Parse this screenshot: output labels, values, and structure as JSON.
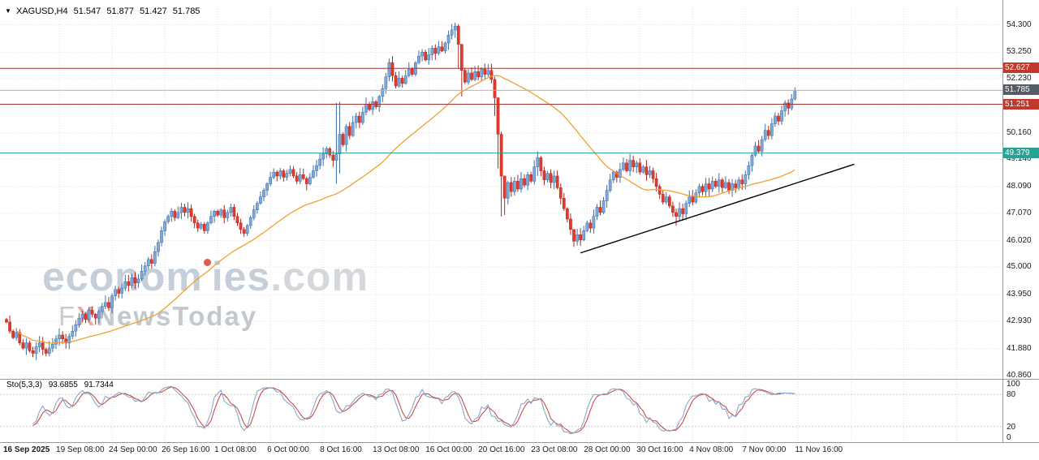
{
  "quote_bar": {
    "symbol_period": "XAGUSD,H4",
    "open": "51.547",
    "high": "51.877",
    "low": "51.427",
    "close": "51.785"
  },
  "watermark": {
    "brand_a": "econom",
    "brand_b": "ies",
    "tld": ".com",
    "fx_f": "F",
    "fx_x": "X",
    "fx_rest": "NewsToday"
  },
  "indicator_label": {
    "name": "Sto(5,3,3)",
    "main_value": "93.6855",
    "signal_value": "91.7344"
  },
  "chart_data": {
    "type": "candlestick",
    "symbol": "XAGUSD",
    "timeframe": "H4",
    "current_ohlc": {
      "open": 51.547,
      "high": 51.877,
      "low": 51.427,
      "close": 51.785
    },
    "visible_price_range": [
      40.72,
      55.0
    ],
    "first_open": 43.0,
    "closes": [
      42.9,
      42.55,
      42.3,
      42.5,
      42.1,
      41.9,
      42.1,
      41.8,
      41.7,
      41.95,
      42.1,
      41.85,
      41.7,
      41.9,
      42.05,
      42.25,
      42.4,
      42.25,
      42.1,
      42.35,
      42.55,
      42.8,
      43.05,
      43.2,
      43.0,
      43.35,
      43.2,
      43.05,
      43.3,
      43.5,
      43.65,
      43.45,
      43.9,
      44.15,
      44.0,
      44.2,
      44.45,
      44.3,
      44.6,
      44.4,
      44.55,
      44.85,
      45.05,
      45.3,
      45.15,
      45.6,
      45.95,
      46.4,
      46.75,
      46.95,
      47.15,
      46.9,
      47.1,
      47.3,
      47.1,
      47.25,
      46.95,
      46.7,
      46.5,
      46.65,
      46.4,
      46.7,
      46.95,
      47.15,
      47.0,
      47.2,
      46.9,
      47.1,
      47.3,
      46.95,
      46.7,
      46.45,
      46.3,
      46.6,
      46.9,
      47.2,
      47.45,
      47.7,
      47.95,
      48.2,
      48.45,
      48.65,
      48.5,
      48.7,
      48.45,
      48.6,
      48.75,
      48.5,
      48.3,
      48.55,
      48.4,
      48.2,
      48.45,
      48.7,
      48.9,
      49.15,
      49.35,
      49.55,
      49.3,
      49.1,
      49.35,
      50.1,
      49.7,
      50.4,
      50.05,
      50.55,
      50.8,
      50.55,
      50.95,
      51.25,
      51.05,
      51.35,
      51.15,
      51.55,
      51.85,
      52.3,
      52.85,
      52.35,
      51.95,
      52.25,
      52.05,
      52.35,
      52.6,
      52.4,
      52.85,
      53.1,
      53.25,
      52.95,
      53.15,
      53.4,
      53.2,
      53.45,
      53.3,
      53.6,
      53.9,
      54.1,
      54.25,
      53.55,
      52.55,
      52.1,
      52.45,
      52.2,
      52.5,
      52.3,
      52.6,
      52.4,
      52.55,
      52.2,
      51.5,
      50.1,
      48.5,
      47.65,
      48.25,
      47.9,
      48.3,
      48.0,
      48.4,
      48.15,
      48.55,
      48.3,
      48.85,
      49.2,
      48.7,
      48.35,
      48.6,
      48.25,
      48.5,
      48.05,
      47.65,
      47.25,
      46.85,
      46.45,
      46.0,
      46.25,
      46.05,
      46.4,
      46.7,
      46.5,
      46.95,
      47.3,
      47.1,
      47.55,
      47.95,
      48.35,
      48.65,
      48.45,
      48.75,
      49.0,
      48.7,
      49.1,
      48.85,
      49.0,
      48.65,
      48.85,
      48.55,
      48.7,
      48.4,
      48.1,
      47.8,
      47.5,
      47.7,
      47.35,
      47.1,
      46.95,
      47.25,
      47.05,
      47.45,
      47.7,
      47.5,
      47.85,
      48.1,
      47.9,
      48.2,
      48.0,
      48.3,
      48.1,
      48.35,
      48.05,
      48.25,
      47.95,
      48.2,
      48.05,
      48.35,
      48.2,
      48.55,
      48.9,
      49.3,
      49.65,
      49.45,
      49.9,
      50.25,
      50.05,
      50.5,
      50.8,
      50.6,
      51.0,
      51.3,
      51.1,
      51.45,
      51.785
    ],
    "wick_overrides": {
      "8": [
        41.95,
        41.55
      ],
      "12": [
        41.92,
        41.58
      ],
      "100": [
        51.3,
        48.2
      ],
      "101": [
        51.35,
        48.6
      ],
      "136": [
        54.38,
        53.8
      ],
      "137": [
        54.32,
        52.6
      ],
      "138": [
        53.3,
        51.55
      ],
      "148": [
        52.3,
        50.8
      ],
      "149": [
        50.9,
        48.8
      ],
      "150": [
        50.2,
        46.95
      ],
      "151": [
        48.4,
        47.0
      ],
      "161": [
        49.45,
        48.5
      ],
      "172": [
        46.4,
        45.78
      ],
      "174": [
        46.5,
        45.82
      ],
      "189": [
        49.35,
        48.5
      ],
      "203": [
        47.25,
        46.6
      ],
      "239": [
        51.9,
        51.4
      ]
    },
    "x_axis_labels": [
      "16 Sep 2025",
      "19 Sep 08:00",
      "24 Sep 00:00",
      "26 Sep 16:00",
      "1 Oct 08:00",
      "6 Oct 00:00",
      "8 Oct 16:00",
      "13 Oct 08:00",
      "16 Oct 00:00",
      "20 Oct 16:00",
      "23 Oct 08:00",
      "28 Oct 00:00",
      "30 Oct 16:00",
      "4 Nov 08:00",
      "7 Nov 00:00",
      "11 Nov 16:00"
    ],
    "candles_per_label": 16,
    "y_ticks": [
      54.3,
      53.25,
      52.23,
      50.16,
      49.14,
      48.09,
      47.07,
      46.02,
      45.0,
      43.95,
      42.93,
      41.88,
      40.86
    ],
    "y_grid_extra": [
      51.18
    ],
    "levels": [
      {
        "label": "52.627",
        "price": 52.627,
        "role": "resistance",
        "line_color": "#a03636",
        "badge_color": "#c0392b"
      },
      {
        "label": "51.251",
        "price": 51.251,
        "role": "resistance",
        "line_color": "#a03636",
        "badge_color": "#c0392b"
      },
      {
        "label": "49.379",
        "price": 49.379,
        "role": "support",
        "line_color": "#27a193",
        "badge_color": "#27a193"
      }
    ],
    "current_price": {
      "label": "51.785",
      "price": 51.785,
      "line_color": "#b3b3b3",
      "badge_color": "#565c62"
    },
    "trendline": {
      "from_index": 174,
      "from_price": 45.55,
      "to_index": 257,
      "to_price": 48.95,
      "color": "#000000"
    },
    "ma": {
      "period": 45,
      "color": "#f0a030"
    },
    "stochastic": {
      "k": 5,
      "d": 3,
      "slowing": 3,
      "levels": [
        80,
        20
      ],
      "axis_labels": [
        100,
        80,
        20,
        0
      ],
      "k_color": "#86a8c8",
      "d_color": "#cc3b3b",
      "current_main": 93.6855,
      "current_signal": 91.7344
    },
    "colors": {
      "up_fill": "#7fa8d9",
      "up_stroke": "#3a6ea8",
      "down_fill": "#e03b30",
      "down_stroke": "#b7241b",
      "grid": "#e0e0e0",
      "separator": "#9a9a9a",
      "axis_text": "#1a1a1a"
    }
  }
}
